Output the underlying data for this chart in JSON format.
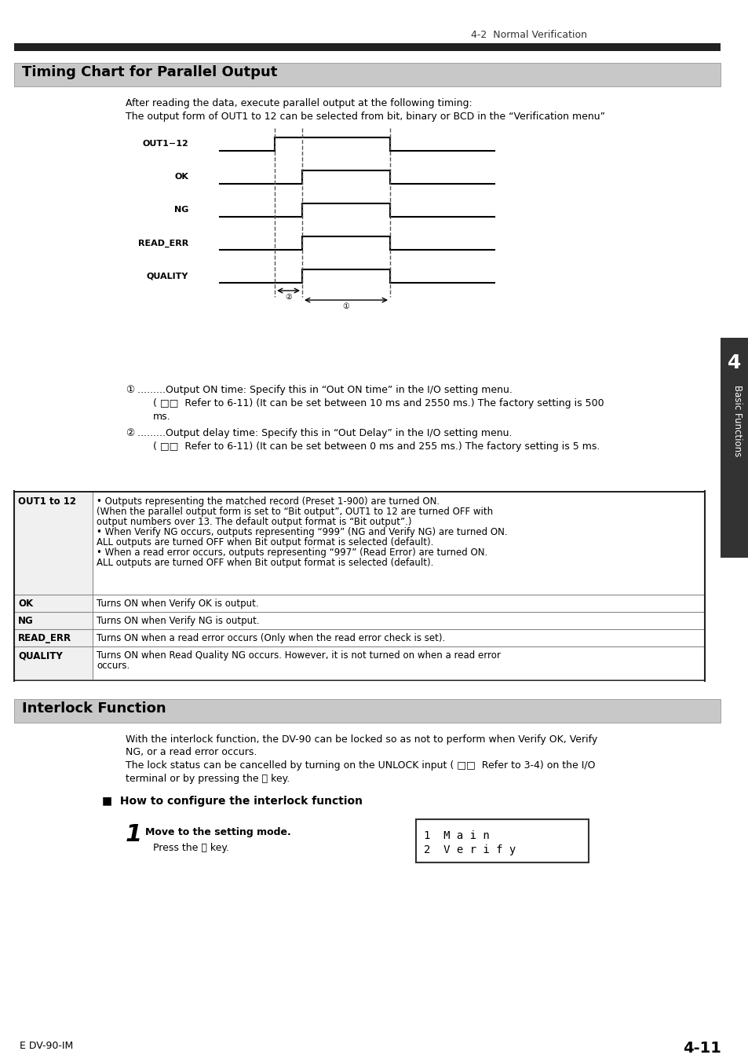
{
  "page_header": "4-2  Normal Verification",
  "section1_title": "Timing Chart for Parallel Output",
  "section1_bg": "#d0d0d0",
  "intro_text1": "After reading the data, execute parallel output at the following timing:",
  "intro_text2": "The output form of OUT1 to 12 can be selected from bit, binary or BCD in the “Verification menu”",
  "waveform_labels": [
    "OUT1−12",
    "OK",
    "NG",
    "READ_ERR",
    "QUALITY"
  ],
  "note1_num": "①",
  "note1_text": ".........Output ON time: Specify this in “Out ON time” in the I/O setting menu.",
  "note1_sub": "( □□  Refer to 6-11) (It can be set between 10 ms and 2550 ms.) The factory setting is 500 ms.",
  "note2_num": "②",
  "note2_text": ".........Output delay time: Specify this in “Out Delay” in the I/O setting menu.",
  "note2_sub": "( □□  Refer to 6-11) (It can be set between 0 ms and 255 ms.) The factory setting is 5 ms.",
  "table_headers": [
    "OUT1 to 12",
    "OK",
    "NG",
    "READ_ERR",
    "QUALITY"
  ],
  "table_col1_data": [
    "OUT1 to 12",
    "OK",
    "NG",
    "READ_ERR",
    "QUALITY"
  ],
  "table_data": [
    [
      "• Outputs representing the matched record (Preset 1-900) are turned ON.\n(When the parallel output form is set to “Bit output”, OUT1 to 12 are turned OFF with\noutput numbers over 13. The default output format is “Bit output”.)\n• When Verify NG occurs, outputs representing “999” (NG and Verify NG) are turned ON.\nALL outputs are turned OFF when Bit output format is selected (default).\n• When a read error occurs, outputs representing “997” (Read Error) are turned ON.\nALL outputs are turned OFF when Bit output format is selected (default)."
    ],
    [
      "Turns ON when Verify OK is output."
    ],
    [
      "Turns ON when Verify NG is output."
    ],
    [
      "Turns ON when a read error occurs (Only when the read error check is set)."
    ],
    [
      "Turns ON when Read Quality NG occurs. However, it is not turned on when a read error\noccurs."
    ]
  ],
  "section2_title": "Interlock Function",
  "section2_bg": "#d0d0d0",
  "interlock_text1": "With the interlock function, the DV-90 can be locked so as not to perform when Verify OK, Verify",
  "interlock_text2": "NG, or a read error occurs.",
  "interlock_text3": "The lock status can be cancelled by turning on the UNLOCK input ( □□  Refer to 3-4) on the I/O",
  "interlock_text4": "terminal or by pressing the ⓨ key.",
  "how_to_title": "■  How to configure the interlock function",
  "step1_num": "1",
  "step1_title": "Move to the setting mode.",
  "step1_text": "Press the Ⓐ key.",
  "lcd_line1": "1  M a i n",
  "lcd_line2": "2  V e r i f y",
  "footer_left": "E DV-90-IM",
  "footer_right": "4-11",
  "sidebar_text": "Basic Functions",
  "sidebar_num": "4"
}
